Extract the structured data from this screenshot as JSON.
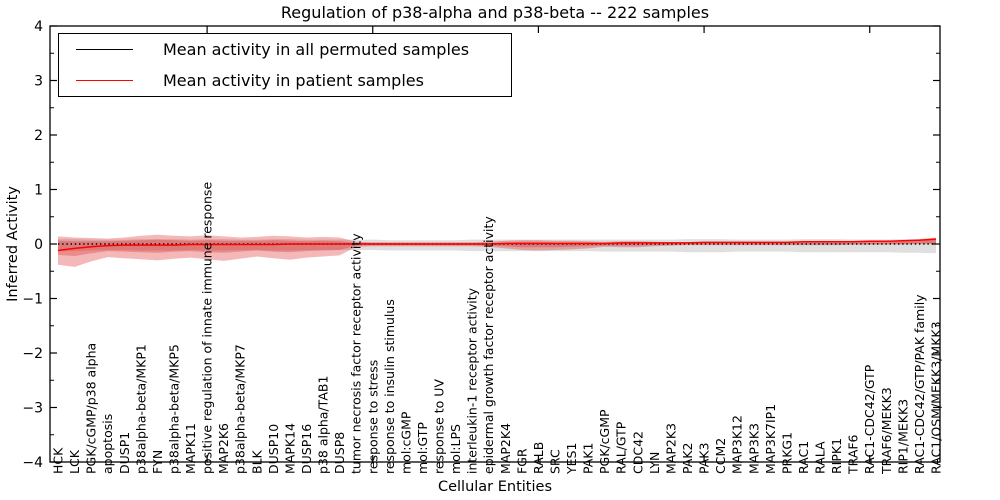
{
  "figure_title": "Regulation of p38-alpha and p38-beta -- 222 samples",
  "legend": {
    "entries": [
      {
        "label": "Mean activity in all permuted samples",
        "color": "#000000"
      },
      {
        "label": "Mean activity in patient samples",
        "color": "#ff0000"
      }
    ]
  },
  "chart_data": {
    "type": "line",
    "title": "Regulation of p38-alpha and p38-beta -- 222 samples",
    "xlabel": "Cellular Entities",
    "ylabel": "Inferred Activity",
    "ylim": [
      -4,
      4
    ],
    "yticks": [
      4,
      3,
      2,
      1,
      0,
      -1,
      -2,
      -3,
      -4
    ],
    "ytick_labels": [
      "4",
      "3",
      "2",
      "1",
      "0",
      "−1",
      "−2",
      "−3",
      "−4"
    ],
    "xticks_major": [
      10,
      20,
      30,
      40,
      50
    ],
    "grid": false,
    "legend_position": "upper left",
    "categories": [
      "HCK",
      "LCK",
      "PGK/cGMP/p38 alpha",
      "apoptosis",
      "DUSP1",
      "p38alpha-beta/MKP1",
      "FYN",
      "p38alpha-beta/MKP5",
      "MAPK11",
      "positive regulation of innate immune response",
      "MAP2K6",
      "p38alpha-beta/MKP7",
      "BLK",
      "DUSP10",
      "MAPK14",
      "DUSP16",
      "p38 alpha/TAB1",
      "DUSP8",
      "tumor necrosis factor receptor activity",
      "response to stress",
      "response to insulin stimulus",
      "mol:cGMP",
      "mol:GTP",
      "response to UV",
      "mol:LPS",
      "interleukin-1 receptor activity",
      "epidermal growth factor receptor activity",
      "MAP2K4",
      "FGR",
      "RALB",
      "SRC",
      "YES1",
      "PAK1",
      "PGK/cGMP",
      "RAL/GTP",
      "CDC42",
      "LYN",
      "MAP2K3",
      "PAK2",
      "PAK3",
      "CCM2",
      "MAP3K12",
      "MAP3K3",
      "MAP3K7IP1",
      "PRKG1",
      "RAC1",
      "RALA",
      "RIPK1",
      "TRAF6",
      "RAC1-CDC42/GTP",
      "TRAF6/MEKK3",
      "RIP1/MEKK3",
      "RAC1-CDC42/GTP/PAK family",
      "RAC1/OSM/MEKK3/MKK3"
    ],
    "series": [
      {
        "name": "Mean activity in all permuted samples",
        "color": "#000000",
        "line_style": "dotted",
        "values": [
          0,
          0,
          0,
          0,
          0,
          0,
          0,
          0,
          0,
          0,
          0,
          0,
          0,
          0,
          0,
          0,
          0,
          0,
          0,
          0,
          0,
          0,
          0,
          0,
          0,
          0,
          0,
          0,
          0,
          0,
          0,
          0,
          0,
          0,
          0,
          0,
          0,
          0,
          0,
          0,
          0,
          0,
          0,
          0,
          0,
          0,
          0,
          0,
          0,
          0,
          0,
          0,
          0,
          0
        ],
        "band_upper": [
          0.09,
          0.09,
          0.08,
          0.08,
          0.08,
          0.09,
          0.09,
          0.09,
          0.08,
          0.09,
          0.09,
          0.08,
          0.08,
          0.09,
          0.09,
          0.08,
          0.08,
          0.08,
          0.08,
          0.08,
          0.07,
          0.07,
          0.07,
          0.07,
          0.07,
          0.08,
          0.08,
          0.08,
          0.08,
          0.08,
          0.08,
          0.08,
          0.08,
          0.08,
          0.08,
          0.08,
          0.08,
          0.08,
          0.09,
          0.09,
          0.09,
          0.08,
          0.08,
          0.08,
          0.08,
          0.09,
          0.09,
          0.09,
          0.08,
          0.08,
          0.08,
          0.09,
          0.09,
          0.1
        ],
        "band_lower": [
          -0.13,
          -0.13,
          -0.12,
          -0.11,
          -0.11,
          -0.12,
          -0.12,
          -0.12,
          -0.11,
          -0.12,
          -0.12,
          -0.11,
          -0.11,
          -0.12,
          -0.12,
          -0.11,
          -0.11,
          -0.11,
          -0.11,
          -0.11,
          -0.12,
          -0.12,
          -0.12,
          -0.12,
          -0.12,
          -0.13,
          -0.13,
          -0.13,
          -0.13,
          -0.13,
          -0.13,
          -0.13,
          -0.13,
          -0.14,
          -0.14,
          -0.14,
          -0.14,
          -0.14,
          -0.15,
          -0.15,
          -0.15,
          -0.14,
          -0.14,
          -0.14,
          -0.14,
          -0.15,
          -0.15,
          -0.15,
          -0.15,
          -0.15,
          -0.15,
          -0.16,
          -0.16,
          -0.17
        ],
        "band_color": "#e3e3e3"
      },
      {
        "name": "Mean activity in patient samples",
        "color": "#ff0000",
        "line_style": "solid",
        "values": [
          -0.12,
          -0.08,
          -0.05,
          -0.03,
          -0.02,
          -0.02,
          -0.02,
          -0.02,
          -0.01,
          -0.01,
          -0.01,
          -0.01,
          -0.01,
          -0.01,
          0.0,
          0.0,
          0.0,
          0.0,
          0.0,
          0.0,
          0.0,
          0.0,
          0.0,
          0.0,
          0.0,
          0.0,
          0.0,
          0.01,
          0.01,
          0.01,
          0.01,
          0.01,
          0.01,
          0.01,
          0.02,
          0.02,
          0.02,
          0.02,
          0.02,
          0.03,
          0.03,
          0.03,
          0.03,
          0.03,
          0.03,
          0.04,
          0.04,
          0.04,
          0.04,
          0.05,
          0.05,
          0.06,
          0.07,
          0.09
        ],
        "band_outer_upper": [
          0.14,
          0.12,
          0.11,
          0.1,
          0.12,
          0.15,
          0.17,
          0.15,
          0.14,
          0.16,
          0.14,
          0.12,
          0.13,
          0.15,
          0.14,
          0.12,
          0.13,
          0.12,
          0.04,
          0.03,
          0.03,
          0.03,
          0.03,
          0.03,
          0.03,
          0.03,
          0.04,
          0.06,
          0.07,
          0.07,
          0.06,
          0.06,
          0.05,
          0.04,
          0.05,
          0.05,
          0.04,
          0.03,
          0.03,
          0.03,
          0.03,
          0.03,
          0.03,
          0.03,
          0.03,
          0.03,
          0.03,
          0.04,
          0.04,
          0.05,
          0.06,
          0.07,
          0.09,
          0.12
        ],
        "band_outer_lower": [
          -0.38,
          -0.42,
          -0.32,
          -0.24,
          -0.26,
          -0.28,
          -0.3,
          -0.27,
          -0.25,
          -0.28,
          -0.31,
          -0.27,
          -0.23,
          -0.26,
          -0.29,
          -0.25,
          -0.23,
          -0.21,
          -0.05,
          -0.04,
          -0.04,
          -0.04,
          -0.04,
          -0.04,
          -0.04,
          -0.04,
          -0.05,
          -0.08,
          -0.11,
          -0.12,
          -0.11,
          -0.1,
          -0.08,
          -0.05,
          -0.06,
          -0.06,
          -0.04,
          -0.03,
          -0.02,
          -0.02,
          -0.02,
          -0.02,
          -0.02,
          -0.02,
          -0.02,
          -0.02,
          -0.02,
          -0.02,
          -0.01,
          -0.01,
          -0.01,
          -0.01,
          0.0,
          0.0
        ],
        "band_inner_upper": [
          0.06,
          0.05,
          0.05,
          0.05,
          0.06,
          0.07,
          0.08,
          0.07,
          0.06,
          0.07,
          0.06,
          0.06,
          0.06,
          0.07,
          0.06,
          0.05,
          0.06,
          0.05,
          0.02,
          0.02,
          0.02,
          0.02,
          0.02,
          0.02,
          0.02,
          0.02,
          0.02,
          0.03,
          0.04,
          0.04,
          0.03,
          0.03,
          0.03,
          0.02,
          0.03,
          0.03,
          0.03,
          0.02,
          0.02,
          0.02,
          0.02,
          0.02,
          0.02,
          0.02,
          0.02,
          0.02,
          0.02,
          0.02,
          0.02,
          0.03,
          0.03,
          0.04,
          0.05,
          0.08
        ],
        "band_inner_lower": [
          -0.2,
          -0.22,
          -0.17,
          -0.13,
          -0.14,
          -0.15,
          -0.16,
          -0.14,
          -0.13,
          -0.15,
          -0.16,
          -0.14,
          -0.12,
          -0.14,
          -0.15,
          -0.13,
          -0.12,
          -0.11,
          -0.03,
          -0.02,
          -0.02,
          -0.02,
          -0.02,
          -0.02,
          -0.02,
          -0.02,
          -0.03,
          -0.04,
          -0.06,
          -0.06,
          -0.06,
          -0.05,
          -0.04,
          -0.03,
          -0.03,
          -0.03,
          -0.02,
          -0.02,
          -0.01,
          -0.01,
          -0.01,
          -0.01,
          -0.01,
          -0.01,
          -0.01,
          -0.01,
          -0.01,
          -0.01,
          -0.01,
          -0.01,
          0.0,
          0.0,
          0.01,
          0.01
        ],
        "band_color": "#f3adad"
      }
    ]
  }
}
